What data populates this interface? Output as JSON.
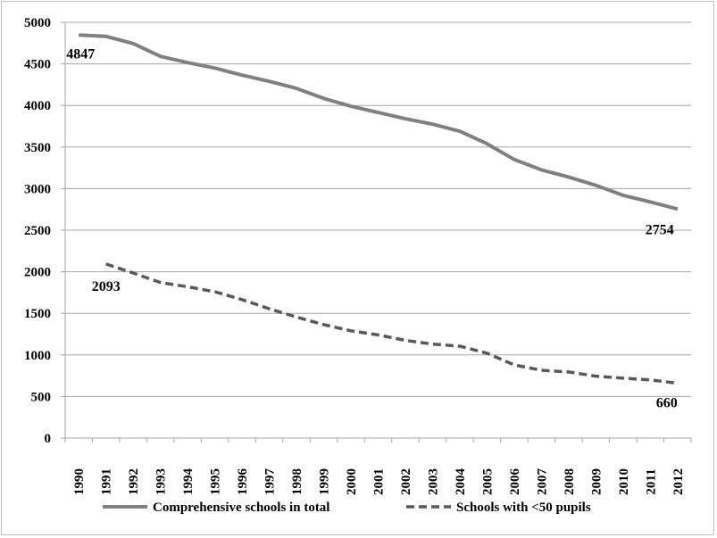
{
  "chart_data": {
    "type": "line",
    "categories": [
      "1990",
      "1991",
      "1992",
      "1993",
      "1994",
      "1995",
      "1996",
      "1997",
      "1998",
      "1999",
      "2000",
      "2001",
      "2002",
      "2003",
      "2004",
      "2005",
      "2006",
      "2007",
      "2008",
      "2009",
      "2010",
      "2011",
      "2012"
    ],
    "series": [
      {
        "name": "Comprehensive schools in total",
        "color": "#808080",
        "dash": "solid",
        "values": [
          4847,
          4830,
          4745,
          4590,
          4515,
          4450,
          4365,
          4290,
          4205,
          4085,
          3990,
          3915,
          3840,
          3775,
          3690,
          3540,
          3350,
          3225,
          3140,
          3040,
          2920,
          2840,
          2754
        ]
      },
      {
        "name": "Schools with <50 pupils",
        "color": "#595959",
        "dash": "dashed",
        "values": [
          null,
          2093,
          1985,
          1870,
          1820,
          1760,
          1665,
          1555,
          1455,
          1365,
          1290,
          1240,
          1175,
          1130,
          1105,
          1020,
          880,
          815,
          795,
          745,
          720,
          700,
          660
        ]
      }
    ],
    "data_labels": [
      {
        "series": 0,
        "index": 0,
        "text": "4847"
      },
      {
        "series": 0,
        "index": 22,
        "text": "2754"
      },
      {
        "series": 1,
        "index": 1,
        "text": "2093"
      },
      {
        "series": 1,
        "index": 22,
        "text": "660"
      }
    ],
    "y_ticks": [
      "0",
      "500",
      "1000",
      "1500",
      "2000",
      "2500",
      "3000",
      "3500",
      "4000",
      "4500",
      "5000"
    ],
    "ylim": [
      0,
      5000
    ],
    "grid": true,
    "legend_position": "bottom",
    "title": "",
    "xlabel": "",
    "ylabel": ""
  }
}
